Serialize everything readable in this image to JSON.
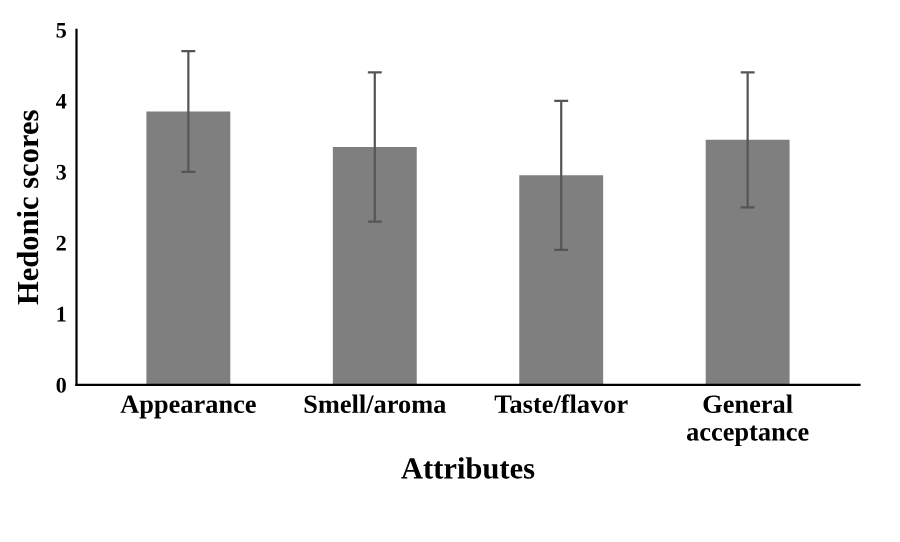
{
  "chart_data": {
    "type": "bar",
    "xlabel": "Attributes",
    "ylabel": "Hedonic scores",
    "categories": [
      "Appearance",
      "Smell/aroma",
      "Taste/flavor",
      "General\nacceptance"
    ],
    "values": [
      3.85,
      3.35,
      2.95,
      3.45
    ],
    "errors": [
      0.85,
      1.05,
      1.05,
      0.95
    ],
    "color": "#7f7f7f",
    "ylim": [
      0,
      5
    ],
    "yticks": [
      0,
      1,
      2,
      3,
      4,
      5
    ],
    "grid": false,
    "legend": false
  }
}
